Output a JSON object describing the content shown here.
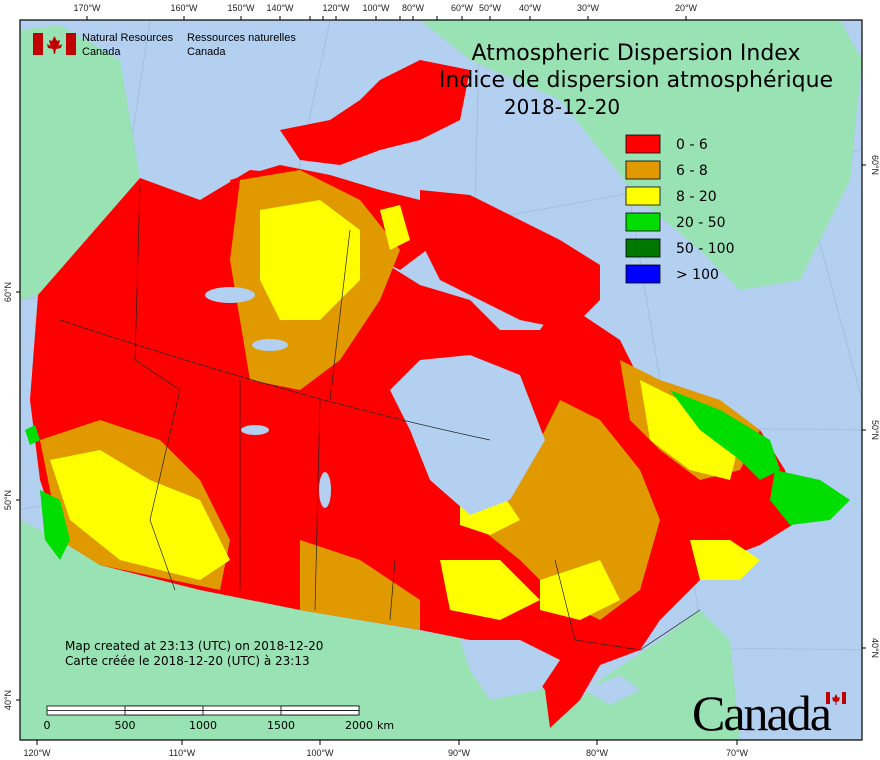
{
  "header": {
    "org_en_line1": "Natural Resources",
    "org_en_line2": "Canada",
    "org_fr_line1": "Ressources naturelles",
    "org_fr_line2": "Canada",
    "title_en": "Atmospheric Dispersion Index",
    "title_fr": "Indice de dispersion atmosphérique",
    "date": "2018-12-20"
  },
  "legend": [
    {
      "label": "0 - 6",
      "color": "#ff0000"
    },
    {
      "label": "6 - 8",
      "color": "#e09a00"
    },
    {
      "label": "8 - 20",
      "color": "#ffff00"
    },
    {
      "label": "20 - 50",
      "color": "#00dd00"
    },
    {
      "label": "50 - 100",
      "color": "#007700"
    },
    {
      "label": "> 100",
      "color": "#0000ff"
    }
  ],
  "axes": {
    "top": [
      "170°W",
      "160°W",
      "150°W",
      "140°W",
      "120°W",
      "100°W",
      "80°W",
      "60°W",
      "50°W",
      "40°W",
      "30°W",
      "20°W"
    ],
    "bottom": [
      "120°W",
      "110°W",
      "100°W",
      "90°W",
      "80°W",
      "70°W"
    ],
    "left": [
      "60°N",
      "50°N",
      "40°N"
    ],
    "right": [
      "60°N",
      "50°N",
      "40°N"
    ]
  },
  "footer": {
    "created_en": "Map created at 23:13 (UTC) on 2018-12-20",
    "created_fr": "Carte créée le 2018-12-20 (UTC) à 23:13",
    "scale_labels": [
      "0",
      "500",
      "1000",
      "1500",
      "2000"
    ],
    "scale_unit": "km",
    "wordmark": "Canada"
  },
  "colors": {
    "water": "#b3d0f0",
    "land": "#98e2b4"
  }
}
